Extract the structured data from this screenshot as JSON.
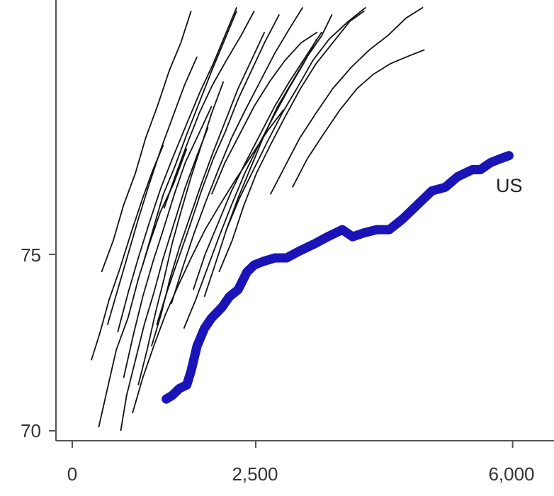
{
  "chart_data": {
    "type": "line",
    "title": "",
    "xlabel": "",
    "ylabel": "",
    "xlim": [
      0,
      6000
    ],
    "ylim": [
      70,
      82
    ],
    "x_ticks": [
      {
        "value": 0,
        "label": "0"
      },
      {
        "value": 2500,
        "label": "2,500"
      },
      {
        "value": 6000,
        "label": "6,000"
      }
    ],
    "y_ticks": [
      {
        "value": 70,
        "label": "70"
      },
      {
        "value": 75,
        "label": "75"
      }
    ],
    "grid": false,
    "colors": {
      "highlight": "#1a14b8",
      "others": "#111111",
      "axis": "#555555"
    },
    "highlight_series": {
      "name": "US",
      "points": [
        [
          1280,
          70.9
        ],
        [
          1360,
          71.0
        ],
        [
          1460,
          71.2
        ],
        [
          1560,
          71.3
        ],
        [
          1620,
          71.7
        ],
        [
          1700,
          72.4
        ],
        [
          1800,
          72.9
        ],
        [
          1900,
          73.2
        ],
        [
          2040,
          73.5
        ],
        [
          2140,
          73.8
        ],
        [
          2260,
          74.0
        ],
        [
          2380,
          74.5
        ],
        [
          2480,
          74.7
        ],
        [
          2600,
          74.8
        ],
        [
          2760,
          74.9
        ],
        [
          2920,
          74.9
        ],
        [
          3100,
          75.1
        ],
        [
          3300,
          75.3
        ],
        [
          3480,
          75.5
        ],
        [
          3680,
          75.7
        ],
        [
          3820,
          75.5
        ],
        [
          3960,
          75.6
        ],
        [
          4150,
          75.7
        ],
        [
          4320,
          75.7
        ],
        [
          4500,
          76.0
        ],
        [
          4700,
          76.4
        ],
        [
          4900,
          76.8
        ],
        [
          5080,
          76.9
        ],
        [
          5250,
          77.2
        ],
        [
          5450,
          77.4
        ],
        [
          5560,
          77.4
        ],
        [
          5700,
          77.6
        ],
        [
          5820,
          77.7
        ],
        [
          5950,
          77.8
        ]
      ]
    },
    "series": [
      {
        "points": [
          [
            260,
            72.0
          ],
          [
            380,
            72.8
          ],
          [
            500,
            73.7
          ],
          [
            650,
            74.6
          ],
          [
            800,
            75.6
          ],
          [
            960,
            76.6
          ],
          [
            1100,
            77.4
          ],
          [
            1240,
            78.1
          ]
        ]
      },
      {
        "points": [
          [
            360,
            70.1
          ],
          [
            480,
            71.2
          ],
          [
            600,
            72.3
          ],
          [
            760,
            73.2
          ],
          [
            900,
            74.3
          ],
          [
            1050,
            75.3
          ],
          [
            1200,
            76.2
          ],
          [
            1380,
            77.0
          ],
          [
            1560,
            78.0
          ]
        ]
      },
      {
        "points": [
          [
            660,
            70.0
          ],
          [
            740,
            71.0
          ],
          [
            860,
            72.0
          ],
          [
            980,
            73.0
          ],
          [
            1110,
            73.9
          ],
          [
            1240,
            74.9
          ],
          [
            1390,
            75.9
          ],
          [
            1540,
            76.9
          ],
          [
            1700,
            77.8
          ],
          [
            1850,
            78.6
          ]
        ]
      },
      {
        "points": [
          [
            700,
            71.5
          ],
          [
            830,
            72.7
          ],
          [
            960,
            73.8
          ],
          [
            1100,
            74.8
          ],
          [
            1240,
            75.7
          ],
          [
            1390,
            76.7
          ],
          [
            1540,
            77.6
          ],
          [
            1720,
            78.4
          ],
          [
            1900,
            79.2
          ]
        ]
      },
      {
        "points": [
          [
            900,
            71.3
          ],
          [
            1020,
            72.3
          ],
          [
            1140,
            73.4
          ],
          [
            1250,
            74.3
          ],
          [
            1360,
            75.3
          ],
          [
            1480,
            76.2
          ],
          [
            1620,
            77.2
          ],
          [
            1760,
            78.1
          ],
          [
            1900,
            79.0
          ],
          [
            2060,
            79.9
          ]
        ]
      },
      {
        "points": [
          [
            400,
            74.5
          ],
          [
            560,
            75.4
          ],
          [
            700,
            76.4
          ],
          [
            860,
            77.3
          ],
          [
            1000,
            78.3
          ],
          [
            1160,
            79.2
          ],
          [
            1320,
            80.2
          ],
          [
            1480,
            81.0
          ],
          [
            1620,
            81.9
          ]
        ]
      },
      {
        "points": [
          [
            620,
            72.8
          ],
          [
            760,
            73.9
          ],
          [
            900,
            74.9
          ],
          [
            1050,
            75.9
          ],
          [
            1210,
            76.9
          ],
          [
            1380,
            77.8
          ],
          [
            1560,
            78.7
          ],
          [
            1740,
            79.6
          ],
          [
            1920,
            80.4
          ],
          [
            2080,
            81.2
          ],
          [
            2240,
            82.0
          ]
        ]
      },
      {
        "points": [
          [
            1080,
            72.4
          ],
          [
            1210,
            73.3
          ],
          [
            1330,
            74.3
          ],
          [
            1460,
            75.2
          ],
          [
            1610,
            76.1
          ],
          [
            1760,
            77.0
          ],
          [
            1920,
            77.9
          ],
          [
            2090,
            78.8
          ],
          [
            2260,
            79.7
          ],
          [
            2440,
            80.5
          ],
          [
            2620,
            81.3
          ]
        ]
      },
      {
        "points": [
          [
            1150,
            73.0
          ],
          [
            1300,
            74.0
          ],
          [
            1450,
            74.9
          ],
          [
            1600,
            75.8
          ],
          [
            1760,
            76.8
          ],
          [
            1920,
            77.7
          ],
          [
            2090,
            78.5
          ],
          [
            2260,
            79.4
          ],
          [
            2440,
            80.2
          ],
          [
            2620,
            81.0
          ],
          [
            2820,
            81.8
          ]
        ]
      },
      {
        "points": [
          [
            960,
            74.7
          ],
          [
            1100,
            75.7
          ],
          [
            1240,
            76.7
          ],
          [
            1400,
            77.5
          ],
          [
            1560,
            78.4
          ],
          [
            1730,
            79.3
          ],
          [
            1900,
            80.2
          ],
          [
            2080,
            81.1
          ],
          [
            2240,
            81.9
          ]
        ]
      },
      {
        "points": [
          [
            1520,
            72.9
          ],
          [
            1680,
            73.7
          ],
          [
            1840,
            74.6
          ],
          [
            2000,
            75.5
          ],
          [
            2170,
            76.4
          ],
          [
            2350,
            77.3
          ],
          [
            2540,
            78.1
          ],
          [
            2740,
            78.9
          ],
          [
            2950,
            79.7
          ],
          [
            3150,
            80.4
          ],
          [
            3330,
            81.1
          ]
        ]
      },
      {
        "points": [
          [
            1800,
            73.8
          ],
          [
            1960,
            74.8
          ],
          [
            2100,
            75.7
          ],
          [
            2260,
            76.6
          ],
          [
            2440,
            77.5
          ],
          [
            2620,
            78.4
          ],
          [
            2800,
            79.2
          ],
          [
            3000,
            79.9
          ],
          [
            3200,
            80.6
          ],
          [
            3400,
            81.2
          ],
          [
            3540,
            81.8
          ]
        ]
      },
      {
        "points": [
          [
            1350,
            73.6
          ],
          [
            1500,
            74.6
          ],
          [
            1660,
            75.6
          ],
          [
            1820,
            76.5
          ],
          [
            1990,
            77.4
          ],
          [
            2170,
            78.3
          ],
          [
            2360,
            79.1
          ],
          [
            2560,
            79.9
          ],
          [
            2760,
            80.7
          ],
          [
            2960,
            81.4
          ],
          [
            3140,
            82.0
          ]
        ]
      },
      {
        "points": [
          [
            2000,
            74.5
          ],
          [
            2180,
            75.4
          ],
          [
            2340,
            76.4
          ],
          [
            2510,
            77.3
          ],
          [
            2700,
            78.1
          ],
          [
            2900,
            78.9
          ],
          [
            3110,
            79.7
          ],
          [
            3320,
            80.4
          ],
          [
            3550,
            81.0
          ],
          [
            3780,
            81.6
          ],
          [
            3980,
            81.9
          ]
        ]
      },
      {
        "points": [
          [
            1250,
            76.3
          ],
          [
            1400,
            77.2
          ],
          [
            1560,
            78.1
          ],
          [
            1730,
            79.0
          ],
          [
            1910,
            79.8
          ],
          [
            2100,
            80.5
          ],
          [
            2300,
            81.2
          ],
          [
            2480,
            81.9
          ]
        ]
      },
      {
        "points": [
          [
            2100,
            75.7
          ],
          [
            2280,
            76.6
          ],
          [
            2470,
            77.4
          ],
          [
            2660,
            78.2
          ],
          [
            2860,
            79.0
          ],
          [
            3060,
            79.7
          ],
          [
            3280,
            80.5
          ],
          [
            3500,
            81.1
          ],
          [
            3760,
            81.6
          ],
          [
            4000,
            82.0
          ]
        ]
      },
      {
        "points": [
          [
            2700,
            76.7
          ],
          [
            2900,
            77.5
          ],
          [
            3100,
            78.3
          ],
          [
            3320,
            79.0
          ],
          [
            3550,
            79.7
          ],
          [
            3800,
            80.3
          ],
          [
            4050,
            80.8
          ],
          [
            4300,
            81.2
          ],
          [
            4550,
            81.7
          ],
          [
            4780,
            82.0
          ]
        ]
      },
      {
        "points": [
          [
            3000,
            76.9
          ],
          [
            3200,
            77.7
          ],
          [
            3420,
            78.4
          ],
          [
            3650,
            79.1
          ],
          [
            3880,
            79.7
          ],
          [
            4100,
            80.1
          ],
          [
            4330,
            80.4
          ],
          [
            4560,
            80.6
          ],
          [
            4800,
            80.8
          ]
        ]
      },
      {
        "points": [
          [
            1650,
            74.0
          ],
          [
            1810,
            75.0
          ],
          [
            1990,
            75.9
          ],
          [
            2170,
            76.8
          ],
          [
            2360,
            77.6
          ],
          [
            2560,
            78.4
          ],
          [
            2760,
            79.2
          ],
          [
            2960,
            79.9
          ],
          [
            3180,
            80.6
          ],
          [
            3400,
            81.3
          ]
        ]
      },
      {
        "points": [
          [
            480,
            73.0
          ],
          [
            620,
            74.0
          ],
          [
            760,
            75.0
          ],
          [
            900,
            76.0
          ],
          [
            1050,
            77.0
          ],
          [
            1210,
            78.0
          ],
          [
            1370,
            78.9
          ],
          [
            1530,
            79.8
          ],
          [
            1700,
            80.6
          ]
        ]
      },
      {
        "points": [
          [
            1900,
            76.7
          ],
          [
            2080,
            77.6
          ],
          [
            2280,
            78.4
          ],
          [
            2480,
            79.2
          ],
          [
            2690,
            79.9
          ],
          [
            2900,
            80.5
          ],
          [
            3120,
            81.0
          ],
          [
            3340,
            81.3
          ]
        ]
      },
      {
        "points": [
          [
            820,
            70.5
          ],
          [
            960,
            71.5
          ],
          [
            1110,
            72.4
          ],
          [
            1270,
            73.3
          ],
          [
            1440,
            74.1
          ],
          [
            1620,
            74.9
          ],
          [
            1810,
            75.7
          ],
          [
            2010,
            76.4
          ],
          [
            2220,
            77.1
          ],
          [
            2440,
            77.8
          ],
          [
            2660,
            78.5
          ],
          [
            2880,
            79.1
          ]
        ]
      }
    ]
  }
}
